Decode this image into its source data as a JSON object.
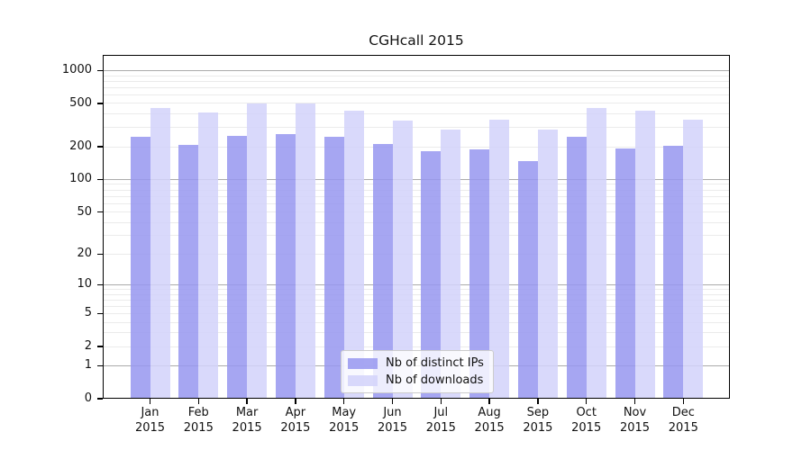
{
  "chart_data": {
    "type": "bar",
    "title": "CGHcall 2015",
    "scale": "pseudo-log: position proportional to log10(value+1)",
    "months": [
      "Jan",
      "Feb",
      "Mar",
      "Apr",
      "May",
      "Jun",
      "Jul",
      "Aug",
      "Sep",
      "Oct",
      "Nov",
      "Dec"
    ],
    "year_label": "2015",
    "series": [
      {
        "name": "Nb of distinct IPs",
        "color": "#9696f0",
        "opacity": 0.85,
        "values": [
          248,
          210,
          253,
          262,
          248,
          214,
          184,
          191,
          148,
          246,
          195,
          206
        ]
      },
      {
        "name": "Nb of downloads",
        "color": "#d2d2fa",
        "opacity": 0.85,
        "values": [
          455,
          415,
          503,
          503,
          430,
          348,
          289,
          353,
          286,
          455,
          430,
          355
        ]
      }
    ],
    "y_ticks": [
      1000,
      500,
      200,
      100,
      50,
      20,
      10,
      5,
      2,
      1,
      0
    ],
    "ylim": [
      0,
      1400
    ],
    "grid": "horizontal; dark major lines at 1,10,100,1000; faint minor lines at 2-9 of each decade",
    "legend_position": "lower center",
    "colors": {
      "major_grid": "#ababab",
      "minor_grid": "#ebebeb",
      "axis": "#000000",
      "legend_border": "#cccccc"
    }
  }
}
